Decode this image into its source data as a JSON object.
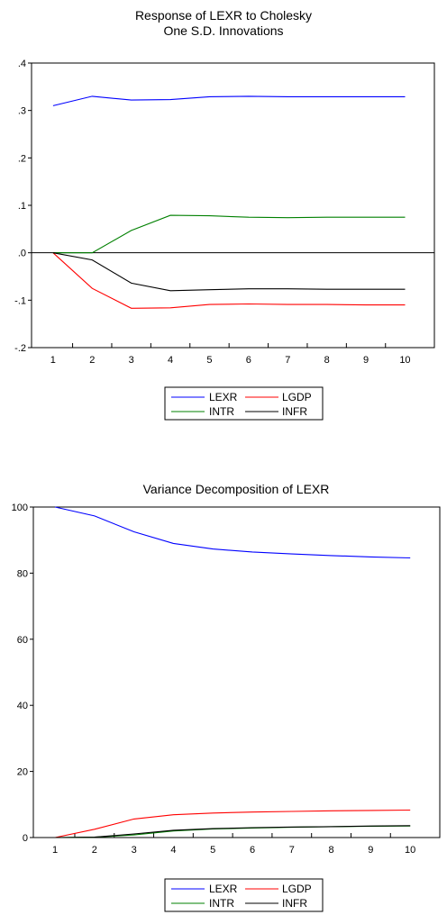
{
  "chart_data": [
    {
      "type": "line",
      "title": "Response of LEXR to Cholesky",
      "subtitle": "One S.D. Innovations",
      "x": [
        1,
        2,
        3,
        4,
        5,
        6,
        7,
        8,
        9,
        10
      ],
      "ylim": [
        -0.2,
        0.4
      ],
      "yticks": [
        ".4",
        ".3",
        ".2",
        ".1",
        ".0",
        "-.1",
        "-.2"
      ],
      "ytick_values": [
        0.4,
        0.3,
        0.2,
        0.1,
        0.0,
        -0.1,
        -0.2
      ],
      "zero_line": true,
      "legend": "bottom",
      "series": [
        {
          "name": "LEXR",
          "color": "#0000ff",
          "values": [
            0.31,
            0.33,
            0.322,
            0.323,
            0.329,
            0.33,
            0.329,
            0.329,
            0.329,
            0.329
          ]
        },
        {
          "name": "LGDP",
          "color": "#ff0000",
          "values": [
            0.0,
            -0.075,
            -0.117,
            -0.116,
            -0.109,
            -0.108,
            -0.109,
            -0.109,
            -0.11,
            -0.11
          ]
        },
        {
          "name": "INTR",
          "color": "#008000",
          "values": [
            0.0,
            0.0,
            0.047,
            0.079,
            0.078,
            0.075,
            0.074,
            0.075,
            0.075,
            0.075
          ]
        },
        {
          "name": "INFR",
          "color": "#000000",
          "values": [
            0.0,
            -0.015,
            -0.064,
            -0.08,
            -0.078,
            -0.076,
            -0.076,
            -0.077,
            -0.077,
            -0.077
          ]
        }
      ]
    },
    {
      "type": "line",
      "title": "Variance Decomposition of LEXR",
      "x": [
        1,
        2,
        3,
        4,
        5,
        6,
        7,
        8,
        9,
        10
      ],
      "ylim": [
        0,
        100
      ],
      "yticks": [
        "100",
        "80",
        "60",
        "40",
        "20",
        "0"
      ],
      "ytick_values": [
        100,
        80,
        60,
        40,
        20,
        0
      ],
      "legend": "bottom",
      "series": [
        {
          "name": "LEXR",
          "color": "#0000ff",
          "values": [
            100,
            97.3,
            92.5,
            89.0,
            87.3,
            86.4,
            85.8,
            85.3,
            84.9,
            84.6
          ]
        },
        {
          "name": "LGDP",
          "color": "#ff0000",
          "values": [
            0,
            2.5,
            5.6,
            6.9,
            7.4,
            7.7,
            7.9,
            8.1,
            8.2,
            8.3
          ]
        },
        {
          "name": "INTR",
          "color": "#008000",
          "values": [
            0,
            0.1,
            0.8,
            2.0,
            2.6,
            2.9,
            3.1,
            3.3,
            3.4,
            3.5
          ]
        },
        {
          "name": "INFR",
          "color": "#000000",
          "values": [
            0,
            0.1,
            1.1,
            2.2,
            2.7,
            3.0,
            3.2,
            3.3,
            3.5,
            3.6
          ]
        }
      ]
    }
  ]
}
